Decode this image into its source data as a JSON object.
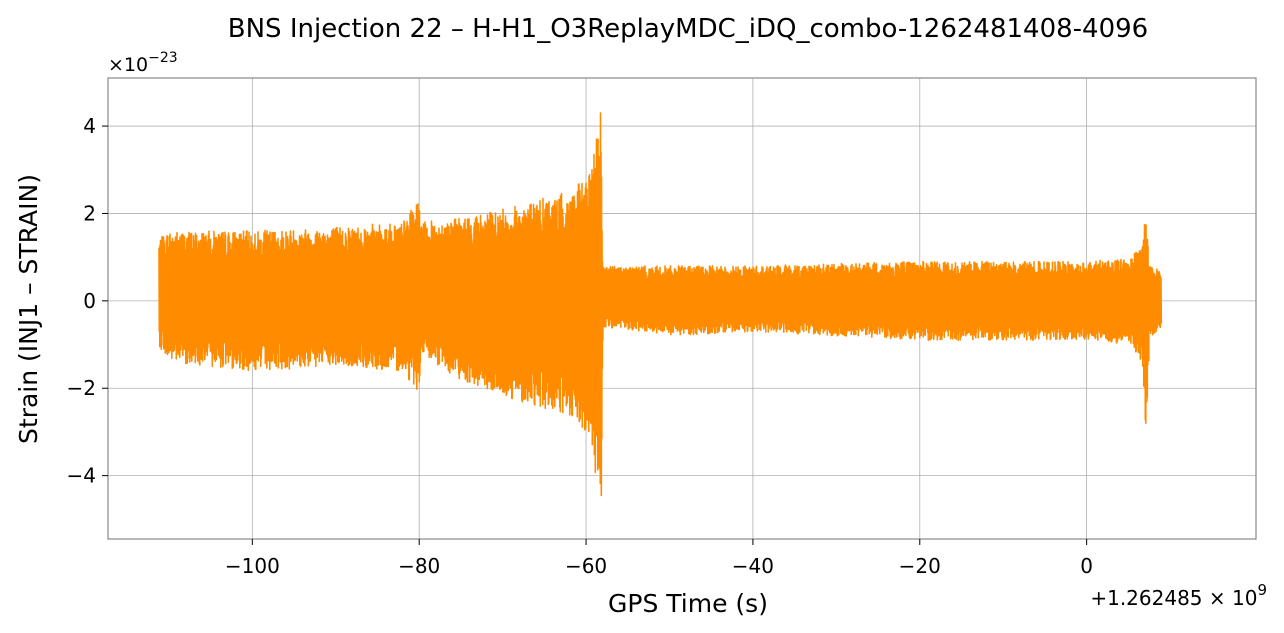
{
  "chart_data": {
    "type": "line",
    "title": "BNS Injection 22 – H-H1_O3ReplayMDC_iDQ_combo-1262481408-4096",
    "xlabel": "GPS Time (s)",
    "ylabel": "Strain (INJ1 – STRAIN)",
    "x_offset_label": "+1.262485 × 10",
    "x_offset_exponent": "9",
    "y_multiplier_label": "×10",
    "y_multiplier_exponent": "−23",
    "xlim": [
      -117.3,
      20.3
    ],
    "ylim": [
      -5.45,
      5.1
    ],
    "x_ticks": [
      -100,
      -80,
      -60,
      -40,
      -20,
      0
    ],
    "x_tick_labels": [
      "−100",
      "−80",
      "−60",
      "−40",
      "−20",
      "0"
    ],
    "y_ticks": [
      -4,
      -2,
      0,
      2,
      4
    ],
    "y_tick_labels": [
      "−4",
      "−2",
      "0",
      "2",
      "4"
    ],
    "grid": true,
    "series": [
      {
        "color": "#ff8c00",
        "x_range": [
          -111.3,
          9.0
        ],
        "envelope": [
          {
            "x": -111.3,
            "min": -1.0,
            "max": 1.4
          },
          {
            "x": -110.0,
            "min": -1.4,
            "max": 1.6
          },
          {
            "x": -100.0,
            "min": -1.6,
            "max": 1.6
          },
          {
            "x": -90.0,
            "min": -1.5,
            "max": 1.7
          },
          {
            "x": -82.0,
            "min": -1.6,
            "max": 1.8
          },
          {
            "x": -80.2,
            "min": -2.1,
            "max": 2.3
          },
          {
            "x": -79.6,
            "min": -1.3,
            "max": 1.8
          },
          {
            "x": -75.0,
            "min": -1.8,
            "max": 1.9
          },
          {
            "x": -70.0,
            "min": -2.2,
            "max": 2.1
          },
          {
            "x": -66.0,
            "min": -2.4,
            "max": 2.3
          },
          {
            "x": -62.0,
            "min": -2.7,
            "max": 2.5
          },
          {
            "x": -59.5,
            "min": -3.2,
            "max": 2.9
          },
          {
            "x": -58.5,
            "min": -4.5,
            "max": 4.3
          },
          {
            "x": -58.2,
            "min": -5.0,
            "max": 4.6
          },
          {
            "x": -58.0,
            "min": -0.6,
            "max": 0.8
          },
          {
            "x": -50.0,
            "min": -0.8,
            "max": 0.8
          },
          {
            "x": -40.0,
            "min": -0.7,
            "max": 0.8
          },
          {
            "x": -20.0,
            "min": -0.9,
            "max": 0.9
          },
          {
            "x": 0.0,
            "min": -0.9,
            "max": 0.9
          },
          {
            "x": 5.5,
            "min": -1.0,
            "max": 1.0
          },
          {
            "x": 6.7,
            "min": -1.6,
            "max": 1.4
          },
          {
            "x": 7.1,
            "min": -3.2,
            "max": 2.1
          },
          {
            "x": 7.5,
            "min": -0.9,
            "max": 0.9
          },
          {
            "x": 9.0,
            "min": -0.6,
            "max": 0.7
          }
        ]
      }
    ]
  }
}
